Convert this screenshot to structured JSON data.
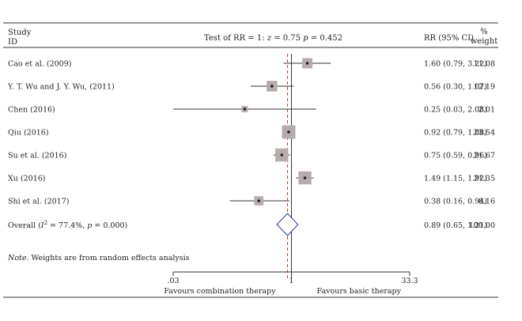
{
  "header": {
    "study_label_line1": "Study",
    "study_label_line2": "ID",
    "test_label_prefix": "Test of RR = 1: ",
    "test_z_symbol": "z",
    "test_z_value": " = 0.75 ",
    "test_p_symbol": "p",
    "test_p_value": " = 0.452",
    "ci_label": "RR (95% CI)",
    "weight_label_line1": "%",
    "weight_label_line2": "weight"
  },
  "note": {
    "prefix": "Note.",
    "text": " Weights are from random effects analysis"
  },
  "axis_labels": {
    "left": "Favours combination therapy",
    "right": "Favours basic therapy"
  },
  "overall": {
    "label_prefix": "Overall (",
    "label_i": "I",
    "label_sup": "2",
    "label_mid": " = 77.4%, ",
    "label_p": "p",
    "label_end": " = 0.000)",
    "ci_text": "0.89 (0.65, 1.21)",
    "weight_text": "100.00"
  },
  "colors": {
    "box": "#b5acab",
    "diamond": "#2e3a8c",
    "overall_line": "#b83a2e",
    "axis": "#333333"
  },
  "chart_data": {
    "type": "forest",
    "x_scale": "log",
    "x_range": [
      0.03,
      33.3
    ],
    "x_ticks": [
      {
        "value": 0.03,
        "label": ".03"
      },
      {
        "value": 1,
        "label": "1"
      },
      {
        "value": 33.3,
        "label": "33.3"
      }
    ],
    "null_value": 1,
    "studies": [
      {
        "label": "Cao et al. (2009)",
        "rr": 1.6,
        "lo": 0.79,
        "hi": 3.22,
        "ci_text": "1.60 (0.79, 3.22)",
        "weight": 11.08,
        "weight_text": "11.08"
      },
      {
        "label": "Y. T. Wu and J. Y. Wu, (2011)",
        "rr": 0.56,
        "lo": 0.3,
        "hi": 1.07,
        "ci_text": "0.56 (0.30, 1.07)",
        "weight": 12.19,
        "weight_text": "12.19"
      },
      {
        "label": "Chen (2016)",
        "rr": 0.25,
        "lo": 0.03,
        "hi": 2.08,
        "ci_text": "0.25 (0.03, 2.08)",
        "weight": 2.01,
        "weight_text": "2.01"
      },
      {
        "label": "Qiu (2016)",
        "rr": 0.92,
        "lo": 0.79,
        "hi": 1.08,
        "ci_text": "0.92 (0.79, 1.08)",
        "weight": 23.54,
        "weight_text": "23.54"
      },
      {
        "label": "Su et al. (2016)",
        "rr": 0.75,
        "lo": 0.59,
        "hi": 0.96,
        "ci_text": "0.75 (0.59, 0.96)",
        "weight": 21.67,
        "weight_text": "21.67"
      },
      {
        "label": "Xu (2016)",
        "rr": 1.49,
        "lo": 1.15,
        "hi": 1.92,
        "ci_text": "1.49 (1.15, 1.92)",
        "weight": 21.35,
        "weight_text": "21.35"
      },
      {
        "label": "Shi et al. (2017)",
        "rr": 0.38,
        "lo": 0.16,
        "hi": 0.94,
        "ci_text": "0.38 (0.16, 0.94)",
        "weight": 8.16,
        "weight_text": "8.16"
      }
    ],
    "overall": {
      "rr": 0.89,
      "lo": 0.65,
      "hi": 1.21,
      "weight": 100.0
    }
  }
}
